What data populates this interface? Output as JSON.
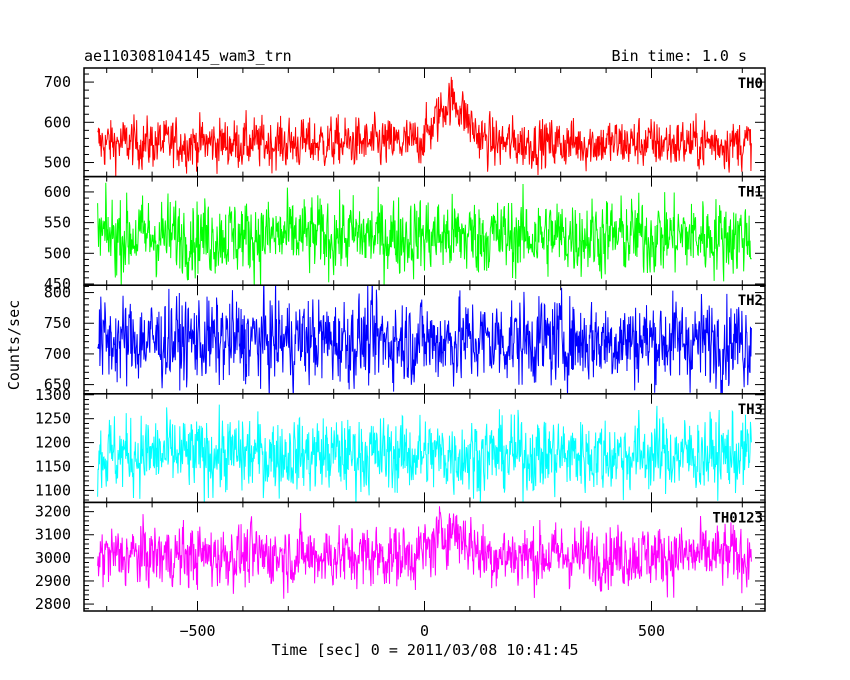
{
  "header": {
    "title": "ae110308104145_wam3_trn",
    "bin_time": "Bin time: 1.0 s"
  },
  "axes": {
    "ylabel": "Counts/sec",
    "xlabel": "Time [sec] 0 = 2011/03/08 10:41:45",
    "xticks": [
      {
        "value": -500,
        "label": "−500"
      },
      {
        "value": 0,
        "label": "0"
      },
      {
        "value": 500,
        "label": "500"
      }
    ]
  },
  "chart_data": {
    "type": "line",
    "title": "ae110308104145_wam3_trn",
    "xlabel": "Time [sec] 0 = 2011/03/08 10:41:45",
    "ylabel": "Counts/sec",
    "xlim": [
      -750,
      750
    ],
    "x_range": [
      -720,
      720
    ],
    "bin_time_s": 1.0,
    "panels": [
      {
        "name": "TH0",
        "color": "#ff0000",
        "ylim": [
          465,
          735
        ],
        "yticks": [
          500,
          600,
          700
        ],
        "baseline": 548,
        "noise": 30,
        "burst": {
          "center": 60,
          "width": 45,
          "amplitude": 105
        }
      },
      {
        "name": "TH1",
        "color": "#00ff00",
        "ylim": [
          448,
          625
        ],
        "yticks": [
          450,
          500,
          550,
          600
        ],
        "baseline": 528,
        "noise": 30
      },
      {
        "name": "TH2",
        "color": "#0000ff",
        "ylim": [
          635,
          812
        ],
        "yticks": [
          650,
          700,
          750,
          800
        ],
        "baseline": 722,
        "noise": 34
      },
      {
        "name": "TH3",
        "color": "#00ffff",
        "ylim": [
          1075,
          1302
        ],
        "yticks": [
          1100,
          1150,
          1200,
          1250,
          1300
        ],
        "baseline": 1175,
        "noise": 38
      },
      {
        "name": "TH0123",
        "color": "#ff00ff",
        "ylim": [
          2770,
          3240
        ],
        "yticks": [
          2800,
          2900,
          3000,
          3100,
          3200
        ],
        "baseline": 3010,
        "noise": 65,
        "burst": {
          "center": 60,
          "width": 45,
          "amplitude": 110
        }
      }
    ]
  }
}
